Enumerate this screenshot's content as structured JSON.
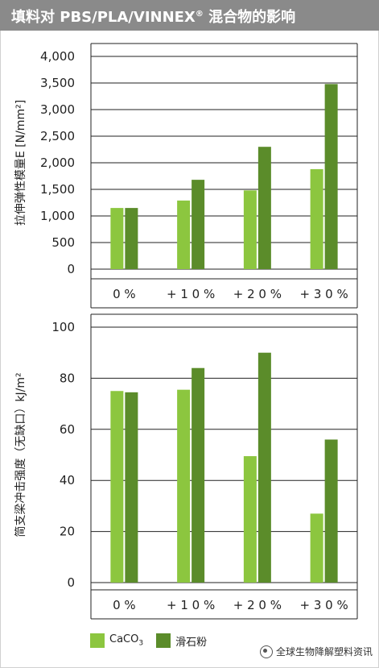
{
  "header": {
    "title": "填料对 PBS/PLA/VINNEX",
    "title_sup": "®",
    "title_suffix": " 混合物的影响"
  },
  "colors": {
    "header_bg": "#8a8a8a",
    "caco3": "#8cc63f",
    "talc": "#5b8c2a"
  },
  "legend": {
    "caco3": "CaCO",
    "caco3_sub": "3",
    "talc": "滑石粉"
  },
  "watermark": {
    "text": "全球生物降解塑料资讯"
  },
  "chart_data": [
    {
      "type": "bar",
      "ylabel": "拉伸弹性模量E [N/mm²]",
      "categories": [
        "0 %",
        "+ 1 0 %",
        "+ 2 0 %",
        "+ 3 0 %"
      ],
      "ylim": [
        0,
        4000
      ],
      "yticks": [
        "0",
        "500",
        "1,000",
        "1,500",
        "2,000",
        "2,500",
        "3,000",
        "3,500",
        "4,000"
      ],
      "ytick_values": [
        0,
        500,
        1000,
        1500,
        2000,
        2500,
        3000,
        3500,
        4000
      ],
      "series": [
        {
          "name": "CaCO3",
          "values": [
            1150,
            1290,
            1480,
            1880
          ]
        },
        {
          "name": "滑石粉",
          "values": [
            1150,
            1680,
            2300,
            3480
          ]
        }
      ]
    },
    {
      "type": "bar",
      "ylabel": "简支梁冲击强度（无缺口）kJ/m²",
      "categories": [
        "0 %",
        "+ 1 0 %",
        "+ 2 0 %",
        "+ 3 0 %"
      ],
      "ylim": [
        0,
        100
      ],
      "yticks": [
        "0",
        "20",
        "40",
        "60",
        "80",
        "100"
      ],
      "ytick_values": [
        0,
        20,
        40,
        60,
        80,
        100
      ],
      "series": [
        {
          "name": "CaCO3",
          "values": [
            75,
            75.5,
            49.5,
            27
          ]
        },
        {
          "name": "滑石粉",
          "values": [
            74.5,
            84,
            90,
            56
          ]
        }
      ]
    }
  ]
}
